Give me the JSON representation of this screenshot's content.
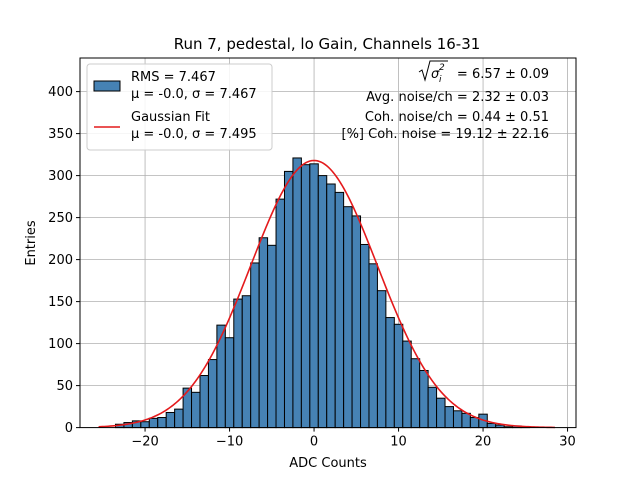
{
  "chart_data": {
    "type": "bar",
    "title": "Run 7, pedestal, lo Gain, Channels 16-31",
    "xlabel": "ADC Counts",
    "ylabel": "Entries",
    "xlim": [
      -27.7,
      31.0
    ],
    "ylim": [
      0,
      440
    ],
    "xticks": [
      -20,
      -10,
      0,
      10,
      20,
      30
    ],
    "yticks": [
      0,
      50,
      100,
      150,
      200,
      250,
      300,
      350,
      400
    ],
    "grid": true,
    "bin_width": 1.0,
    "bins": [
      {
        "x": -23,
        "y": 4
      },
      {
        "x": -22,
        "y": 6
      },
      {
        "x": -21,
        "y": 8
      },
      {
        "x": -20,
        "y": 7
      },
      {
        "x": -19,
        "y": 11
      },
      {
        "x": -18,
        "y": 12
      },
      {
        "x": -17,
        "y": 18
      },
      {
        "x": -16,
        "y": 22
      },
      {
        "x": -15,
        "y": 47
      },
      {
        "x": -14,
        "y": 42
      },
      {
        "x": -13,
        "y": 62
      },
      {
        "x": -12,
        "y": 81
      },
      {
        "x": -11,
        "y": 122
      },
      {
        "x": -10,
        "y": 107
      },
      {
        "x": -9,
        "y": 153
      },
      {
        "x": -8,
        "y": 157
      },
      {
        "x": -7,
        "y": 196
      },
      {
        "x": -6,
        "y": 226
      },
      {
        "x": -5,
        "y": 217
      },
      {
        "x": -4,
        "y": 272
      },
      {
        "x": -3,
        "y": 305
      },
      {
        "x": -2,
        "y": 321
      },
      {
        "x": -1,
        "y": 313
      },
      {
        "x": 0,
        "y": 314
      },
      {
        "x": 1,
        "y": 300
      },
      {
        "x": 2,
        "y": 290
      },
      {
        "x": 3,
        "y": 280
      },
      {
        "x": 4,
        "y": 263
      },
      {
        "x": 5,
        "y": 252
      },
      {
        "x": 6,
        "y": 218
      },
      {
        "x": 7,
        "y": 195
      },
      {
        "x": 8,
        "y": 163
      },
      {
        "x": 9,
        "y": 131
      },
      {
        "x": 10,
        "y": 123
      },
      {
        "x": 11,
        "y": 103
      },
      {
        "x": 12,
        "y": 82
      },
      {
        "x": 13,
        "y": 68
      },
      {
        "x": 14,
        "y": 48
      },
      {
        "x": 15,
        "y": 35
      },
      {
        "x": 16,
        "y": 25
      },
      {
        "x": 17,
        "y": 20
      },
      {
        "x": 18,
        "y": 17
      },
      {
        "x": 19,
        "y": 12
      },
      {
        "x": 20,
        "y": 16
      },
      {
        "x": 21,
        "y": 5
      },
      {
        "x": 22,
        "y": 3
      },
      {
        "x": 23,
        "y": 1
      },
      {
        "x": 24,
        "y": 2
      },
      {
        "x": 25,
        "y": 1
      }
    ],
    "fit": {
      "mu": 0.0,
      "sigma": 7.495,
      "amplitude": 318,
      "x_range": [
        -25.5,
        28.5
      ]
    },
    "legend": {
      "placement": "top-left",
      "hist_line1": "RMS = 7.467",
      "hist_line2": "μ = -0.0, σ = 7.467",
      "fit_line1": "Gaussian Fit",
      "fit_line2": "μ = -0.0, σ = 7.495"
    },
    "annotations": {
      "line1_value": "= 6.57 ± 0.09",
      "line2": "Avg. noise/ch = 2.32 ± 0.03",
      "line3": "Coh. noise/ch = 0.44 ± 0.51",
      "line4": "[%] Coh. noise = 19.12 ± 22.16"
    },
    "colors": {
      "bar_fill": "#4682b4",
      "bar_edge": "#000000",
      "fit_line": "#e41a1c",
      "grid": "#b0b0b0"
    }
  }
}
